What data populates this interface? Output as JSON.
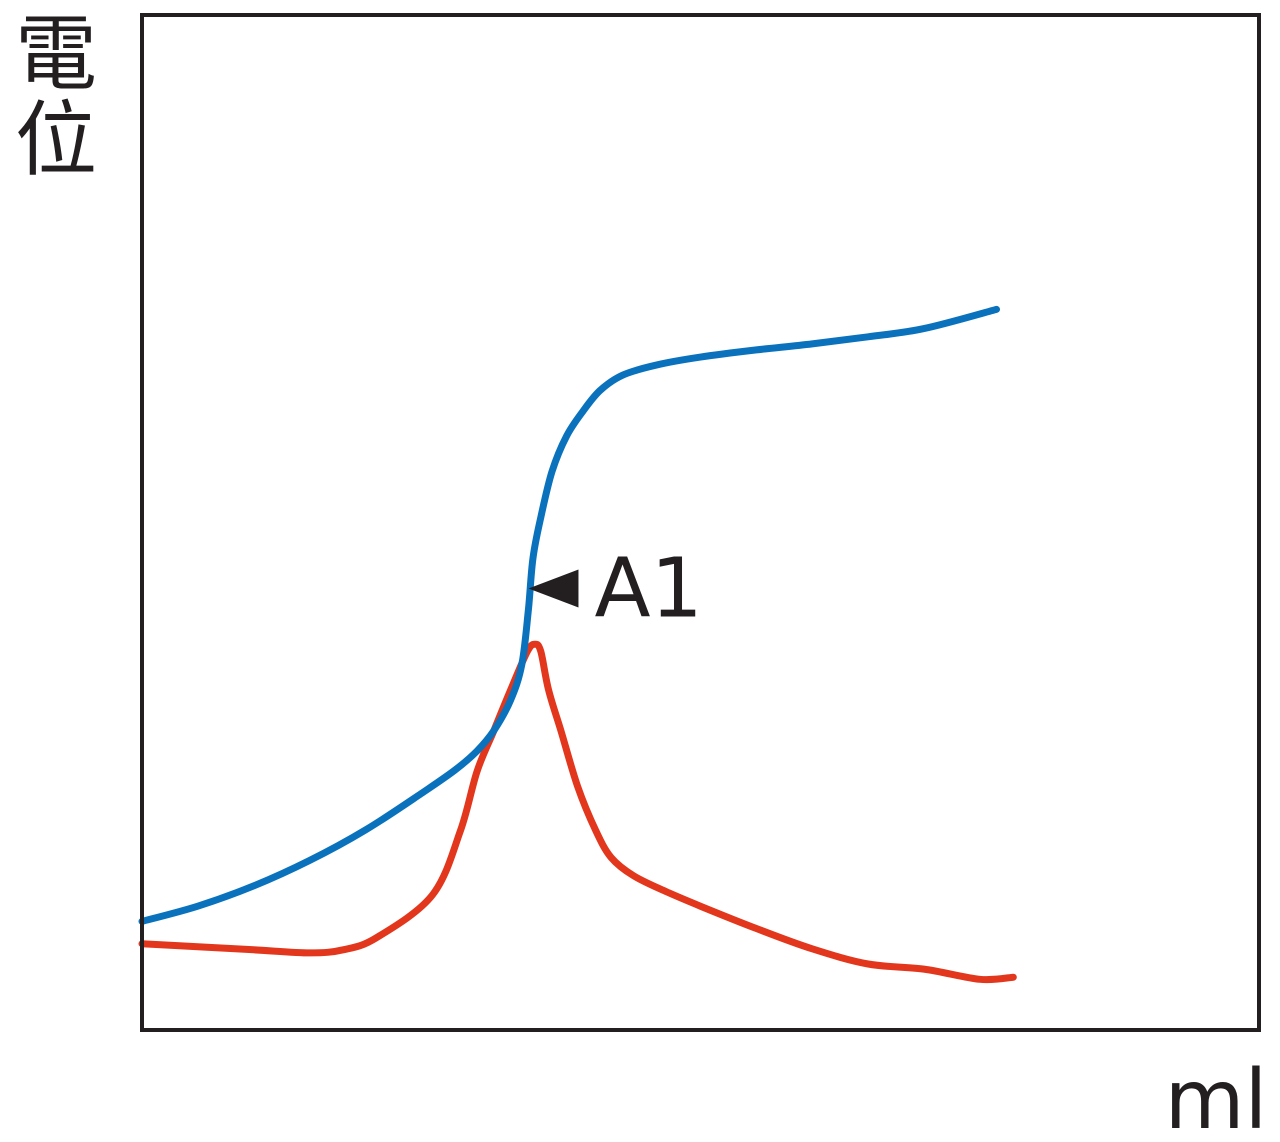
{
  "chart_data": {
    "type": "line",
    "title": "",
    "ylabel": "電位",
    "xlabel": "ml",
    "xlim": [
      0,
      100
    ],
    "ylim": [
      0,
      100
    ],
    "grid": false,
    "ticks": false,
    "annotation": {
      "text": "A1",
      "marker": "left-pointing-triangle",
      "x": 34.6,
      "y": 43.5
    },
    "series": [
      {
        "color": "#0a72bd",
        "x": [
          0,
          5,
          10,
          15,
          20,
          25,
          28,
          30,
          31.5,
          33,
          34,
          34.6,
          35,
          35.7,
          36.7,
          38,
          39.5,
          41,
          43,
          46,
          50,
          55,
          60,
          65,
          70,
          76.5
        ],
        "y": [
          10.7,
          12.2,
          14.2,
          16.7,
          19.7,
          23.3,
          25.6,
          27.5,
          29.5,
          32.5,
          36.0,
          41.5,
          46.5,
          50.5,
          55.0,
          58.5,
          61.0,
          63.0,
          64.5,
          65.5,
          66.3,
          67.0,
          67.6,
          68.3,
          69.1,
          71.0
        ]
      },
      {
        "color": "#e2371c",
        "x": [
          0,
          5,
          10,
          15,
          18,
          21,
          26,
          28.5,
          30,
          31.5,
          33,
          34.5,
          35.2,
          35.7,
          36.4,
          37.5,
          39,
          40.6,
          42,
          44,
          47,
          50,
          55,
          60,
          65,
          70,
          75,
          78
        ],
        "y": [
          8.5,
          8.2,
          7.9,
          7.6,
          7.9,
          9.1,
          13.3,
          19.6,
          25.5,
          29.5,
          33.5,
          37.3,
          38.0,
          37.3,
          33.5,
          29.5,
          24.0,
          19.7,
          17.0,
          15.2,
          13.6,
          12.2,
          10.0,
          8.0,
          6.5,
          6.0,
          5.0,
          5.2
        ]
      }
    ]
  }
}
